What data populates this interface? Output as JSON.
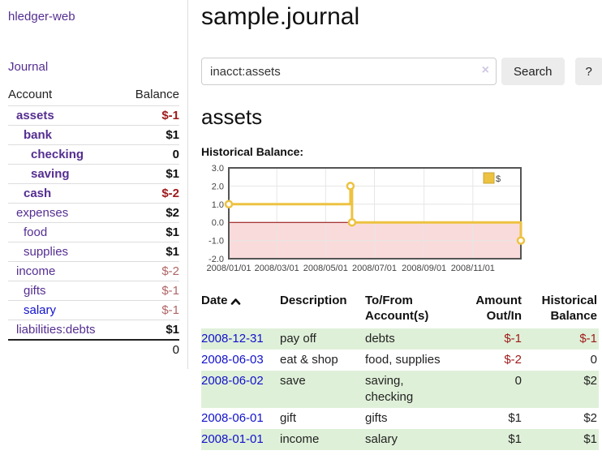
{
  "brand": "hledger-web",
  "nav": {
    "journal_label": "Journal"
  },
  "sidebar_accounts": {
    "headers": {
      "account": "Account",
      "balance": "Balance"
    },
    "rows": [
      {
        "name": "assets",
        "balance": "$-1",
        "depth": 0,
        "bold": true,
        "link": "purple",
        "balance_style": "neg-strong"
      },
      {
        "name": "bank",
        "balance": "$1",
        "depth": 1,
        "bold": true,
        "link": "purple",
        "balance_style": "pos"
      },
      {
        "name": "checking",
        "balance": "0",
        "depth": 2,
        "bold": true,
        "link": "purple",
        "balance_style": "pos"
      },
      {
        "name": "saving",
        "balance": "$1",
        "depth": 2,
        "bold": true,
        "link": "purple",
        "balance_style": "pos"
      },
      {
        "name": "cash",
        "balance": "$-2",
        "depth": 1,
        "bold": true,
        "link": "purple",
        "balance_style": "neg-strong"
      },
      {
        "name": "expenses",
        "balance": "$2",
        "depth": 0,
        "bold": false,
        "link": "purple",
        "balance_style": "pos"
      },
      {
        "name": "food",
        "balance": "$1",
        "depth": 1,
        "bold": false,
        "link": "purple",
        "balance_style": "pos"
      },
      {
        "name": "supplies",
        "balance": "$1",
        "depth": 1,
        "bold": false,
        "link": "purple",
        "balance_style": "pos"
      },
      {
        "name": "income",
        "balance": "$-2",
        "depth": 0,
        "bold": false,
        "link": "purple",
        "balance_style": "neg-muted"
      },
      {
        "name": "gifts",
        "balance": "$-1",
        "depth": 1,
        "bold": false,
        "link": "purple",
        "balance_style": "neg-muted"
      },
      {
        "name": "salary",
        "balance": "$-1",
        "depth": 1,
        "bold": false,
        "link": "blue",
        "balance_style": "neg-muted"
      },
      {
        "name": "liabilities:debts",
        "balance": "$1",
        "depth": 0,
        "bold": false,
        "link": "purple",
        "balance_style": "pos"
      }
    ],
    "total": "0"
  },
  "header": {
    "title": "sample.journal"
  },
  "search": {
    "value": "inacct:assets",
    "clear_icon": "×",
    "button_label": "Search",
    "help_label": "?"
  },
  "account_page": {
    "heading": "assets",
    "chart_label": "Historical Balance:"
  },
  "chart_data": {
    "type": "line",
    "step": true,
    "title": "Historical Balance",
    "series": [
      {
        "name": "$",
        "color": "#edc240",
        "points": [
          [
            "2008-01-01",
            1
          ],
          [
            "2008-06-01",
            2
          ],
          [
            "2008-06-03",
            0
          ],
          [
            "2008-12-31",
            -1
          ]
        ]
      }
    ],
    "x_range": [
      "2008-01-01",
      "2008-12-31"
    ],
    "y_range": [
      -2,
      3
    ],
    "y_ticks": [
      3.0,
      2.0,
      1.0,
      0.0,
      -1.0,
      -2.0
    ],
    "x_tick_labels": [
      "2008/01/01",
      "2008/03/01",
      "2008/05/01",
      "2008/07/01",
      "2008/09/01",
      "2008/11/01"
    ],
    "legend": "$",
    "legend_position": "top-right",
    "grid": true,
    "negative_fill": "#fadbdb",
    "zero_line_color": "#8b0000",
    "border_color": "#545454"
  },
  "register_table": {
    "headers": {
      "date": "Date",
      "sort_icon": "chevron-up",
      "description": "Description",
      "tofrom": [
        "To/From",
        "Account(s)"
      ],
      "amount": [
        "Amount",
        "Out/In"
      ],
      "historical": [
        "Historical",
        "Balance"
      ]
    },
    "rows": [
      {
        "date": "2008-12-31",
        "description": "pay off",
        "accounts": "debts",
        "amount": "$-1",
        "amount_neg": true,
        "balance": "$-1",
        "balance_neg": true
      },
      {
        "date": "2008-06-03",
        "description": "eat & shop",
        "accounts": "food, supplies",
        "amount": "$-2",
        "amount_neg": true,
        "balance": "0",
        "balance_neg": false
      },
      {
        "date": "2008-06-02",
        "description": "save",
        "accounts": "saving, checking",
        "amount": "0",
        "amount_neg": false,
        "balance": "$2",
        "balance_neg": false
      },
      {
        "date": "2008-06-01",
        "description": "gift",
        "accounts": "gifts",
        "amount": "$1",
        "amount_neg": false,
        "balance": "$2",
        "balance_neg": false
      },
      {
        "date": "2008-01-01",
        "description": "income",
        "accounts": "salary",
        "amount": "$1",
        "amount_neg": false,
        "balance": "$1",
        "balance_neg": false
      }
    ]
  },
  "colors": {
    "link_purple": "#552e91",
    "link_blue": "#1111cc",
    "negative_strong": "#9e1a1a",
    "negative_muted": "#b06565",
    "row_stripe_green": "#dff0d8",
    "chart_series_yellow": "#edc240"
  }
}
